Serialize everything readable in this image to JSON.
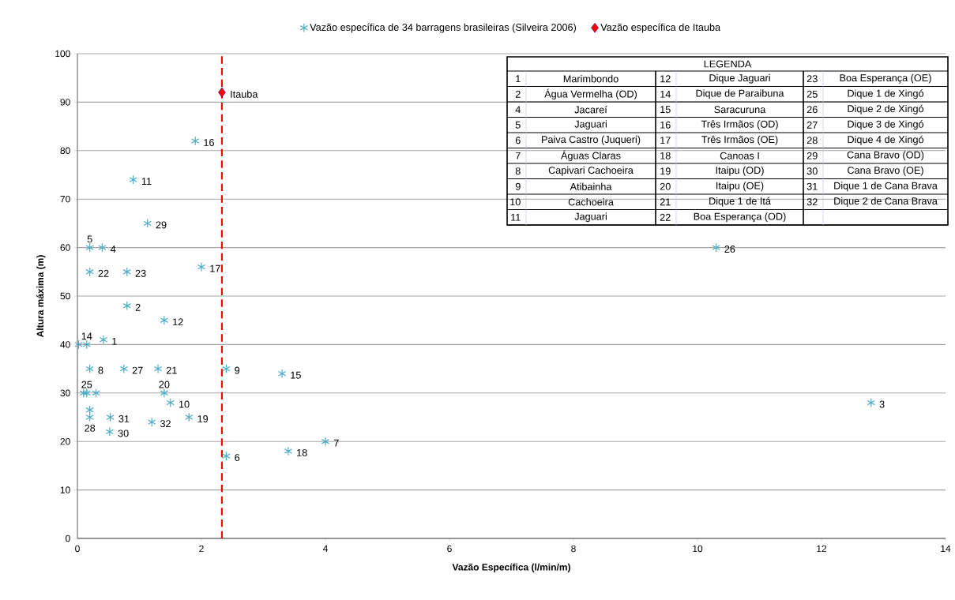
{
  "chart_data": {
    "type": "scatter",
    "xlabel": "Vazão Específica  (l/min/m)",
    "ylabel": "Altura máxima (m)",
    "xlim": [
      0,
      14
    ],
    "ylim": [
      0,
      100
    ],
    "xticks": [
      0,
      2,
      4,
      6,
      8,
      10,
      12,
      14
    ],
    "yticks": [
      0,
      10,
      20,
      30,
      40,
      50,
      60,
      70,
      80,
      90,
      100
    ],
    "grid": "y",
    "legend": "top",
    "series": [
      {
        "name": "Vazão específica de 34 barragens brasileiras (Silveira 2006)",
        "color": "#4bacc6",
        "marker": "cross",
        "x": [
          0.42,
          0.8,
          12.8,
          0.4,
          0.2,
          2.4,
          4.0,
          0.2,
          2.4,
          1.5,
          0.9,
          1.4,
          0.02,
          0.15,
          3.3,
          1.9,
          2.0,
          3.4,
          1.8,
          1.4,
          1.3,
          0.2,
          0.8,
          0.1,
          0.15,
          0.3,
          10.3,
          0.75,
          0.2,
          0.2,
          1.13,
          0.52,
          0.53,
          1.2
        ],
        "values": [
          41,
          48,
          28,
          60,
          60,
          17,
          20,
          35,
          35,
          28,
          74,
          45,
          40,
          40,
          34,
          82,
          56,
          18,
          25,
          30,
          35,
          55,
          55,
          30,
          30,
          30,
          60,
          35,
          26.5,
          25,
          65,
          22,
          25,
          24
        ]
      },
      {
        "name": "Vazão específica de Itauba",
        "color": "#ff0000",
        "marker": "diamond",
        "x": [
          2.33
        ],
        "values": [
          92
        ]
      }
    ],
    "ref_lines": [
      {
        "axis": "x",
        "value": 2.33,
        "color": "#ff0000",
        "line_style": "dashed"
      }
    ],
    "annotations": [
      {
        "text": "Itauba",
        "x": 2.33,
        "y": 92
      },
      {
        "text": "1",
        "x": 0.42,
        "y": 41
      },
      {
        "text": "2",
        "x": 0.8,
        "y": 48
      },
      {
        "text": "3",
        "x": 12.8,
        "y": 28
      },
      {
        "text": "4",
        "x": 0.4,
        "y": 60
      },
      {
        "text": "5",
        "x": 0.2,
        "y": 60
      },
      {
        "text": "6",
        "x": 2.4,
        "y": 17
      },
      {
        "text": "7",
        "x": 4.0,
        "y": 20
      },
      {
        "text": "8",
        "x": 0.2,
        "y": 35
      },
      {
        "text": "9",
        "x": 2.4,
        "y": 35
      },
      {
        "text": "10",
        "x": 1.5,
        "y": 28
      },
      {
        "text": "11",
        "x": 0.9,
        "y": 74
      },
      {
        "text": "12",
        "x": 1.4,
        "y": 45
      },
      {
        "text": "14",
        "x": 0.15,
        "y": 40
      },
      {
        "text": "15",
        "x": 3.3,
        "y": 34
      },
      {
        "text": "16",
        "x": 1.9,
        "y": 82
      },
      {
        "text": "17",
        "x": 2.0,
        "y": 56
      },
      {
        "text": "18",
        "x": 3.4,
        "y": 18
      },
      {
        "text": "19",
        "x": 1.8,
        "y": 25
      },
      {
        "text": "20",
        "x": 1.4,
        "y": 30
      },
      {
        "text": "21",
        "x": 1.3,
        "y": 35
      },
      {
        "text": "22",
        "x": 0.2,
        "y": 55
      },
      {
        "text": "23",
        "x": 0.8,
        "y": 55
      },
      {
        "text": "25",
        "x": 0.15,
        "y": 30
      },
      {
        "text": "26",
        "x": 10.3,
        "y": 60
      },
      {
        "text": "27",
        "x": 0.75,
        "y": 35
      },
      {
        "text": "28",
        "x": 0.2,
        "y": 25
      },
      {
        "text": "29",
        "x": 1.13,
        "y": 65
      },
      {
        "text": "30",
        "x": 0.52,
        "y": 22
      },
      {
        "text": "31",
        "x": 0.53,
        "y": 25
      },
      {
        "text": "32",
        "x": 1.2,
        "y": 24
      },
      "LEGENDA",
      "1",
      "Marimbondo",
      "2",
      "Água Vermelha (OD)",
      "4",
      "Jacareí",
      "5",
      "Jaguari",
      "6",
      "Paiva Castro (Juqueri)",
      "7",
      "Águas Claras",
      "8",
      "Capivari Cachoeira",
      "9",
      "Atibainha",
      "10",
      "Cachoeira",
      "11",
      "Jaguari",
      "12",
      "Dique Jaguari",
      "14",
      "Dique de Paraibuna",
      "15",
      "Saracuruna",
      "16",
      "Três Irmãos (OD)",
      "17",
      "Três Irmãos (OE)",
      "18",
      "Canoas I",
      "19",
      "Itaipu (OD)",
      "20",
      "Itaipu (OE)",
      "21",
      "Dique 1 de Itá",
      "22",
      "Boa Esperança (OD)",
      "23",
      "Boa Esperança (OE)",
      "25",
      "Dique 1 de Xingó",
      "26",
      "Dique 2 de Xingó",
      "27",
      "Dique 3 de Xingó",
      "28",
      "Dique 4 de Xingó",
      "29",
      "Cana Bravo (OD)",
      "30",
      "Cana Bravo (OE)",
      "31",
      "Dique 1 de Cana Brava",
      "32",
      "Dique 2 de Cana Brava"
    ]
  }
}
